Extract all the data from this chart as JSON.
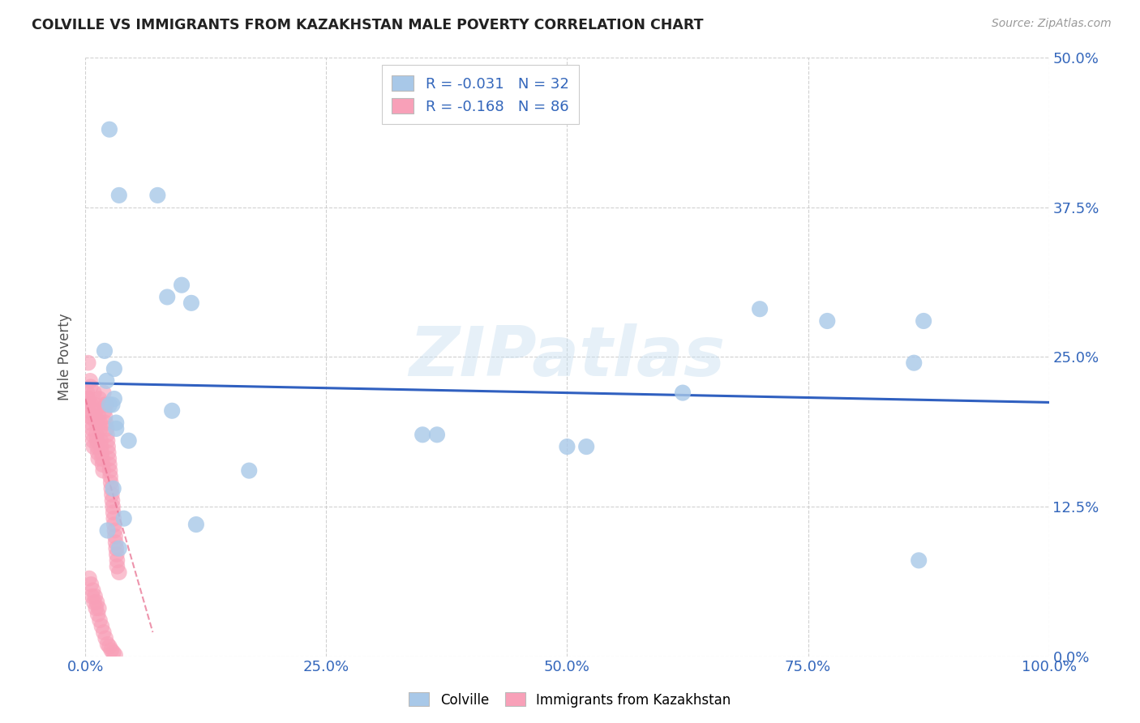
{
  "title": "COLVILLE VS IMMIGRANTS FROM KAZAKHSTAN MALE POVERTY CORRELATION CHART",
  "source": "Source: ZipAtlas.com",
  "ylabel": "Male Poverty",
  "ylabel_tick_vals": [
    0.0,
    12.5,
    25.0,
    37.5,
    50.0
  ],
  "xlabel_tick_vals": [
    0.0,
    25.0,
    50.0,
    75.0,
    100.0
  ],
  "ylim": [
    0.0,
    50.0
  ],
  "xlim": [
    0.0,
    100.0
  ],
  "colville_R": -0.031,
  "colville_N": 32,
  "kazakhstan_R": -0.168,
  "kazakhstan_N": 86,
  "colville_color": "#a8c8e8",
  "kazakhstan_color": "#f8a0b8",
  "colville_line_color": "#3060c0",
  "kazakhstan_line_color": "#e87090",
  "watermark_text": "ZIPatlas",
  "colville_x": [
    2.5,
    3.5,
    7.5,
    10.0,
    2.0,
    3.0,
    8.5,
    11.0,
    2.2,
    3.0,
    9.0,
    2.5,
    3.2,
    35.0,
    36.5,
    50.0,
    52.0,
    62.0,
    70.0,
    77.0,
    86.0,
    87.0,
    2.8,
    3.2,
    4.5,
    17.0,
    2.9,
    4.0,
    11.5,
    2.3,
    3.5,
    86.5
  ],
  "colville_y": [
    44.0,
    38.5,
    38.5,
    31.0,
    25.5,
    24.0,
    30.0,
    29.5,
    23.0,
    21.5,
    20.5,
    21.0,
    19.5,
    18.5,
    18.5,
    17.5,
    17.5,
    22.0,
    29.0,
    28.0,
    24.5,
    28.0,
    21.0,
    19.0,
    18.0,
    15.5,
    14.0,
    11.5,
    11.0,
    10.5,
    9.0,
    8.0
  ],
  "kazakhstan_x": [
    0.2,
    0.25,
    0.3,
    0.35,
    0.4,
    0.45,
    0.5,
    0.55,
    0.6,
    0.65,
    0.7,
    0.75,
    0.8,
    0.85,
    0.9,
    0.95,
    1.0,
    1.05,
    1.1,
    1.15,
    1.2,
    1.25,
    1.3,
    1.35,
    1.4,
    1.45,
    1.5,
    1.55,
    1.6,
    1.65,
    1.7,
    1.75,
    1.8,
    1.85,
    1.9,
    1.95,
    2.0,
    2.05,
    2.1,
    2.15,
    2.2,
    2.25,
    2.3,
    2.35,
    2.4,
    2.45,
    2.5,
    2.55,
    2.6,
    2.65,
    2.7,
    2.75,
    2.8,
    2.85,
    2.9,
    2.95,
    3.0,
    3.05,
    3.1,
    3.15,
    3.2,
    3.25,
    3.3,
    0.3,
    0.5,
    0.7,
    0.9,
    1.1,
    1.3,
    1.5,
    1.7,
    1.9,
    2.1,
    2.3,
    2.5,
    2.7,
    2.9,
    3.1,
    3.3,
    3.5,
    0.4,
    0.6,
    0.8,
    1.0,
    1.2,
    1.4
  ],
  "kazakhstan_y": [
    22.0,
    21.5,
    21.0,
    20.5,
    21.5,
    20.0,
    19.5,
    22.5,
    21.0,
    20.0,
    19.0,
    18.5,
    18.0,
    17.5,
    22.0,
    21.0,
    20.5,
    20.0,
    19.5,
    18.5,
    18.0,
    17.5,
    17.0,
    16.5,
    20.0,
    21.5,
    19.5,
    19.0,
    18.0,
    17.5,
    17.0,
    16.5,
    16.0,
    15.5,
    22.0,
    21.0,
    20.5,
    20.0,
    19.5,
    21.0,
    19.0,
    18.5,
    18.0,
    17.5,
    17.0,
    16.5,
    16.0,
    15.5,
    15.0,
    14.5,
    14.0,
    13.5,
    13.0,
    12.5,
    12.0,
    11.5,
    11.0,
    10.5,
    10.0,
    9.5,
    9.0,
    8.5,
    8.0,
    24.5,
    23.0,
    5.0,
    4.5,
    4.0,
    3.5,
    3.0,
    2.5,
    2.0,
    1.5,
    1.0,
    0.8,
    0.5,
    0.3,
    0.1,
    7.5,
    7.0,
    6.5,
    6.0,
    5.5,
    5.0,
    4.5,
    4.0
  ],
  "colville_line_x": [
    0.0,
    100.0
  ],
  "colville_line_y": [
    22.8,
    21.2
  ],
  "kazakhstan_line_x": [
    0.0,
    7.0
  ],
  "kazakhstan_line_y": [
    21.5,
    2.0
  ]
}
